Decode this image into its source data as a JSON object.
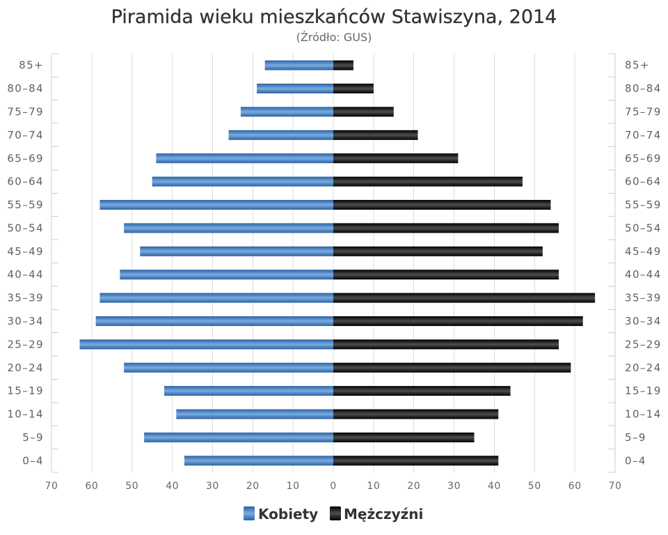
{
  "chart_data": {
    "type": "bar",
    "orientation": "horizontal",
    "title": "Piramida wieku mieszkańców Stawiszyna, 2014",
    "subtitle": "(Źródło: GUS)",
    "categories": [
      "85+",
      "80–84",
      "75–79",
      "70–74",
      "65–69",
      "60–64",
      "55–59",
      "50–54",
      "45–49",
      "40–44",
      "35–39",
      "30–34",
      "25–29",
      "20–24",
      "15–19",
      "10–14",
      "5–9",
      "0–4"
    ],
    "series": [
      {
        "name": "Kobiety",
        "side": "left",
        "color": "#3f79bd",
        "values": [
          17,
          19,
          23,
          26,
          44,
          45,
          58,
          52,
          48,
          53,
          58,
          59,
          63,
          52,
          42,
          39,
          47,
          37
        ]
      },
      {
        "name": "Mężczyźni",
        "side": "right",
        "color": "#111111",
        "values": [
          5,
          10,
          15,
          21,
          31,
          47,
          54,
          56,
          52,
          56,
          65,
          62,
          56,
          59,
          44,
          41,
          35,
          41
        ]
      }
    ],
    "x_ticks": [
      0,
      10,
      20,
      30,
      40,
      50,
      60,
      70
    ],
    "xlim": [
      0,
      70
    ],
    "grid": true,
    "legend": "bottom-center"
  }
}
